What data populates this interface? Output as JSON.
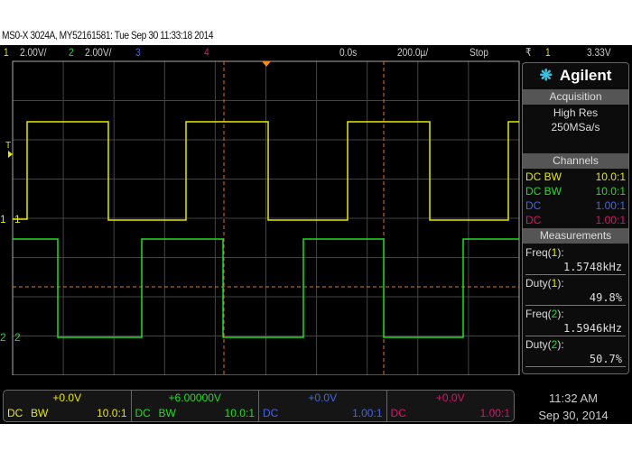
{
  "title": "MS0-X 3024A, MY52161581: Tue Sep 30 11:33:18 2014",
  "topbar": {
    "ch1_num": "1",
    "ch1_scale": "2.00V/",
    "ch2_num": "2",
    "ch2_scale": "2.00V/",
    "ch3_num": "3",
    "ch4_num": "4",
    "delay": "0.0s",
    "timebase": "200.0µ/",
    "run_state": "Stop",
    "trigger_icon": "trigger-edge-falling-icon",
    "trigger_src": "1",
    "trigger_level": "3.33V"
  },
  "markers": {
    "trigger": "T",
    "ch1": "1",
    "ch2": "2"
  },
  "side": {
    "brand": "Agilent",
    "acq_header": "Acquisition",
    "acq_mode": "High Res",
    "acq_rate": "250MSa/s",
    "ch_header": "Channels",
    "channels": [
      {
        "coupling": "DC BW",
        "probe": "10.0:1",
        "color": "#e8e800"
      },
      {
        "coupling": "DC BW",
        "probe": "10.0:1",
        "color": "#22dd22"
      },
      {
        "coupling": "DC",
        "probe": "1.00:1",
        "color": "#4466dd"
      },
      {
        "coupling": "DC",
        "probe": "1.00:1",
        "color": "#e0106a"
      }
    ],
    "meas_header": "Measurements",
    "measurements": [
      {
        "name": "Freq(",
        "ch": "1",
        "close": "):",
        "value": "1.5748kHz",
        "color": "#e8e800"
      },
      {
        "name": "Duty(",
        "ch": "1",
        "close": "):",
        "value": "49.8%",
        "color": "#e8e800"
      },
      {
        "name": "Freq(",
        "ch": "2",
        "close": "):",
        "value": "1.5946kHz",
        "color": "#22dd22"
      },
      {
        "name": "Duty(",
        "ch": "2",
        "close": "):",
        "value": "50.7%",
        "color": "#22dd22"
      }
    ]
  },
  "bottom": [
    {
      "offset": "+0.0V",
      "coupling": "DC",
      "bw": "BW",
      "probe": "10.0:1"
    },
    {
      "offset": "+6.00000V",
      "coupling": "DC",
      "bw": "BW",
      "probe": "10.0:1"
    },
    {
      "offset": "+0.0V",
      "coupling": "DC",
      "bw": "",
      "probe": "1.00:1"
    },
    {
      "offset": "+0.0V",
      "coupling": "DC",
      "bw": "",
      "probe": "1.00:1"
    }
  ],
  "clock": {
    "time": "11:32 AM",
    "date": "Sep 30, 2014"
  }
}
